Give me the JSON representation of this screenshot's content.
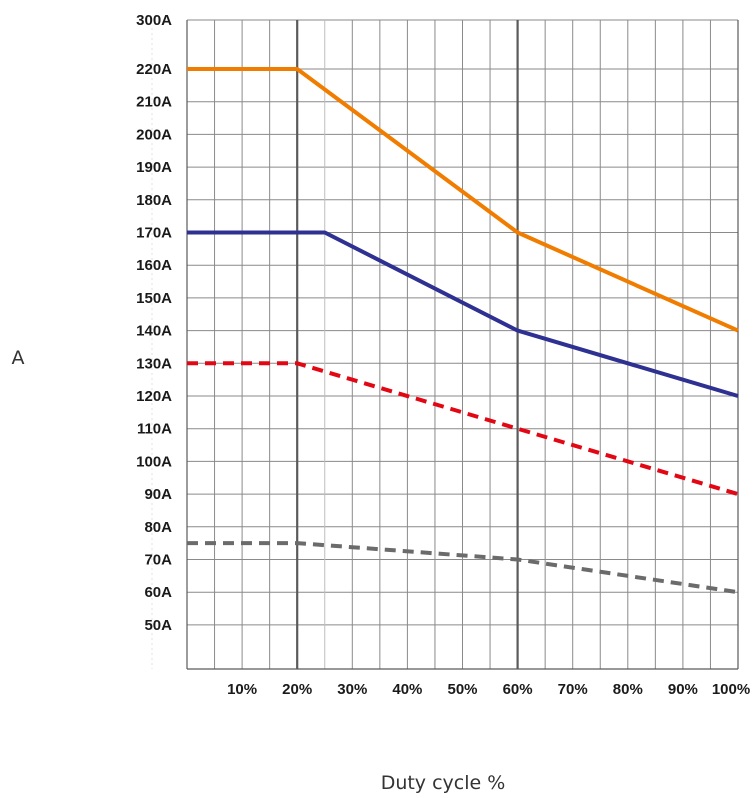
{
  "chart_data": {
    "type": "line",
    "xlabel": "Duty cycle %",
    "ylabel": "A",
    "x_ticks": [
      {
        "value": 10,
        "label": "10%"
      },
      {
        "value": 20,
        "label": "20%"
      },
      {
        "value": 30,
        "label": "30%"
      },
      {
        "value": 40,
        "label": "40%"
      },
      {
        "value": 50,
        "label": "50%"
      },
      {
        "value": 60,
        "label": "60%"
      },
      {
        "value": 70,
        "label": "70%"
      },
      {
        "value": 80,
        "label": "80%"
      },
      {
        "value": 90,
        "label": "90%"
      },
      {
        "value": 100,
        "label": "100%"
      }
    ],
    "y_ticks": [
      {
        "value": 50,
        "label": "50A"
      },
      {
        "value": 60,
        "label": "60A"
      },
      {
        "value": 70,
        "label": "70A"
      },
      {
        "value": 80,
        "label": "80A"
      },
      {
        "value": 90,
        "label": "90A"
      },
      {
        "value": 100,
        "label": "100A"
      },
      {
        "value": 110,
        "label": "110A"
      },
      {
        "value": 120,
        "label": "120A"
      },
      {
        "value": 130,
        "label": "130A"
      },
      {
        "value": 140,
        "label": "140A"
      },
      {
        "value": 150,
        "label": "150A"
      },
      {
        "value": 160,
        "label": "160A"
      },
      {
        "value": 170,
        "label": "170A"
      },
      {
        "value": 180,
        "label": "180A"
      },
      {
        "value": 190,
        "label": "190A"
      },
      {
        "value": 200,
        "label": "200A"
      },
      {
        "value": 210,
        "label": "210A"
      },
      {
        "value": 220,
        "label": "220A"
      },
      {
        "value": 300,
        "label": "300A"
      }
    ],
    "xlim": [
      0,
      100
    ],
    "grid": true,
    "emphasized_x_gridlines": [
      20,
      60
    ],
    "series": [
      {
        "color": "#f07d00",
        "style": "solid",
        "x": [
          0,
          20,
          60,
          100
        ],
        "y": [
          220,
          220,
          170,
          140
        ]
      },
      {
        "color": "#2e3192",
        "style": "solid",
        "x": [
          0,
          25,
          60,
          100
        ],
        "y": [
          170,
          170,
          140,
          120
        ]
      },
      {
        "color": "#e30613",
        "style": "dashed",
        "x": [
          0,
          20,
          60,
          100
        ],
        "y": [
          130,
          130,
          110,
          90
        ]
      },
      {
        "color": "#6b6b6b",
        "style": "dashed",
        "x": [
          0,
          20,
          60,
          100
        ],
        "y": [
          75,
          75,
          70,
          60
        ]
      }
    ]
  }
}
